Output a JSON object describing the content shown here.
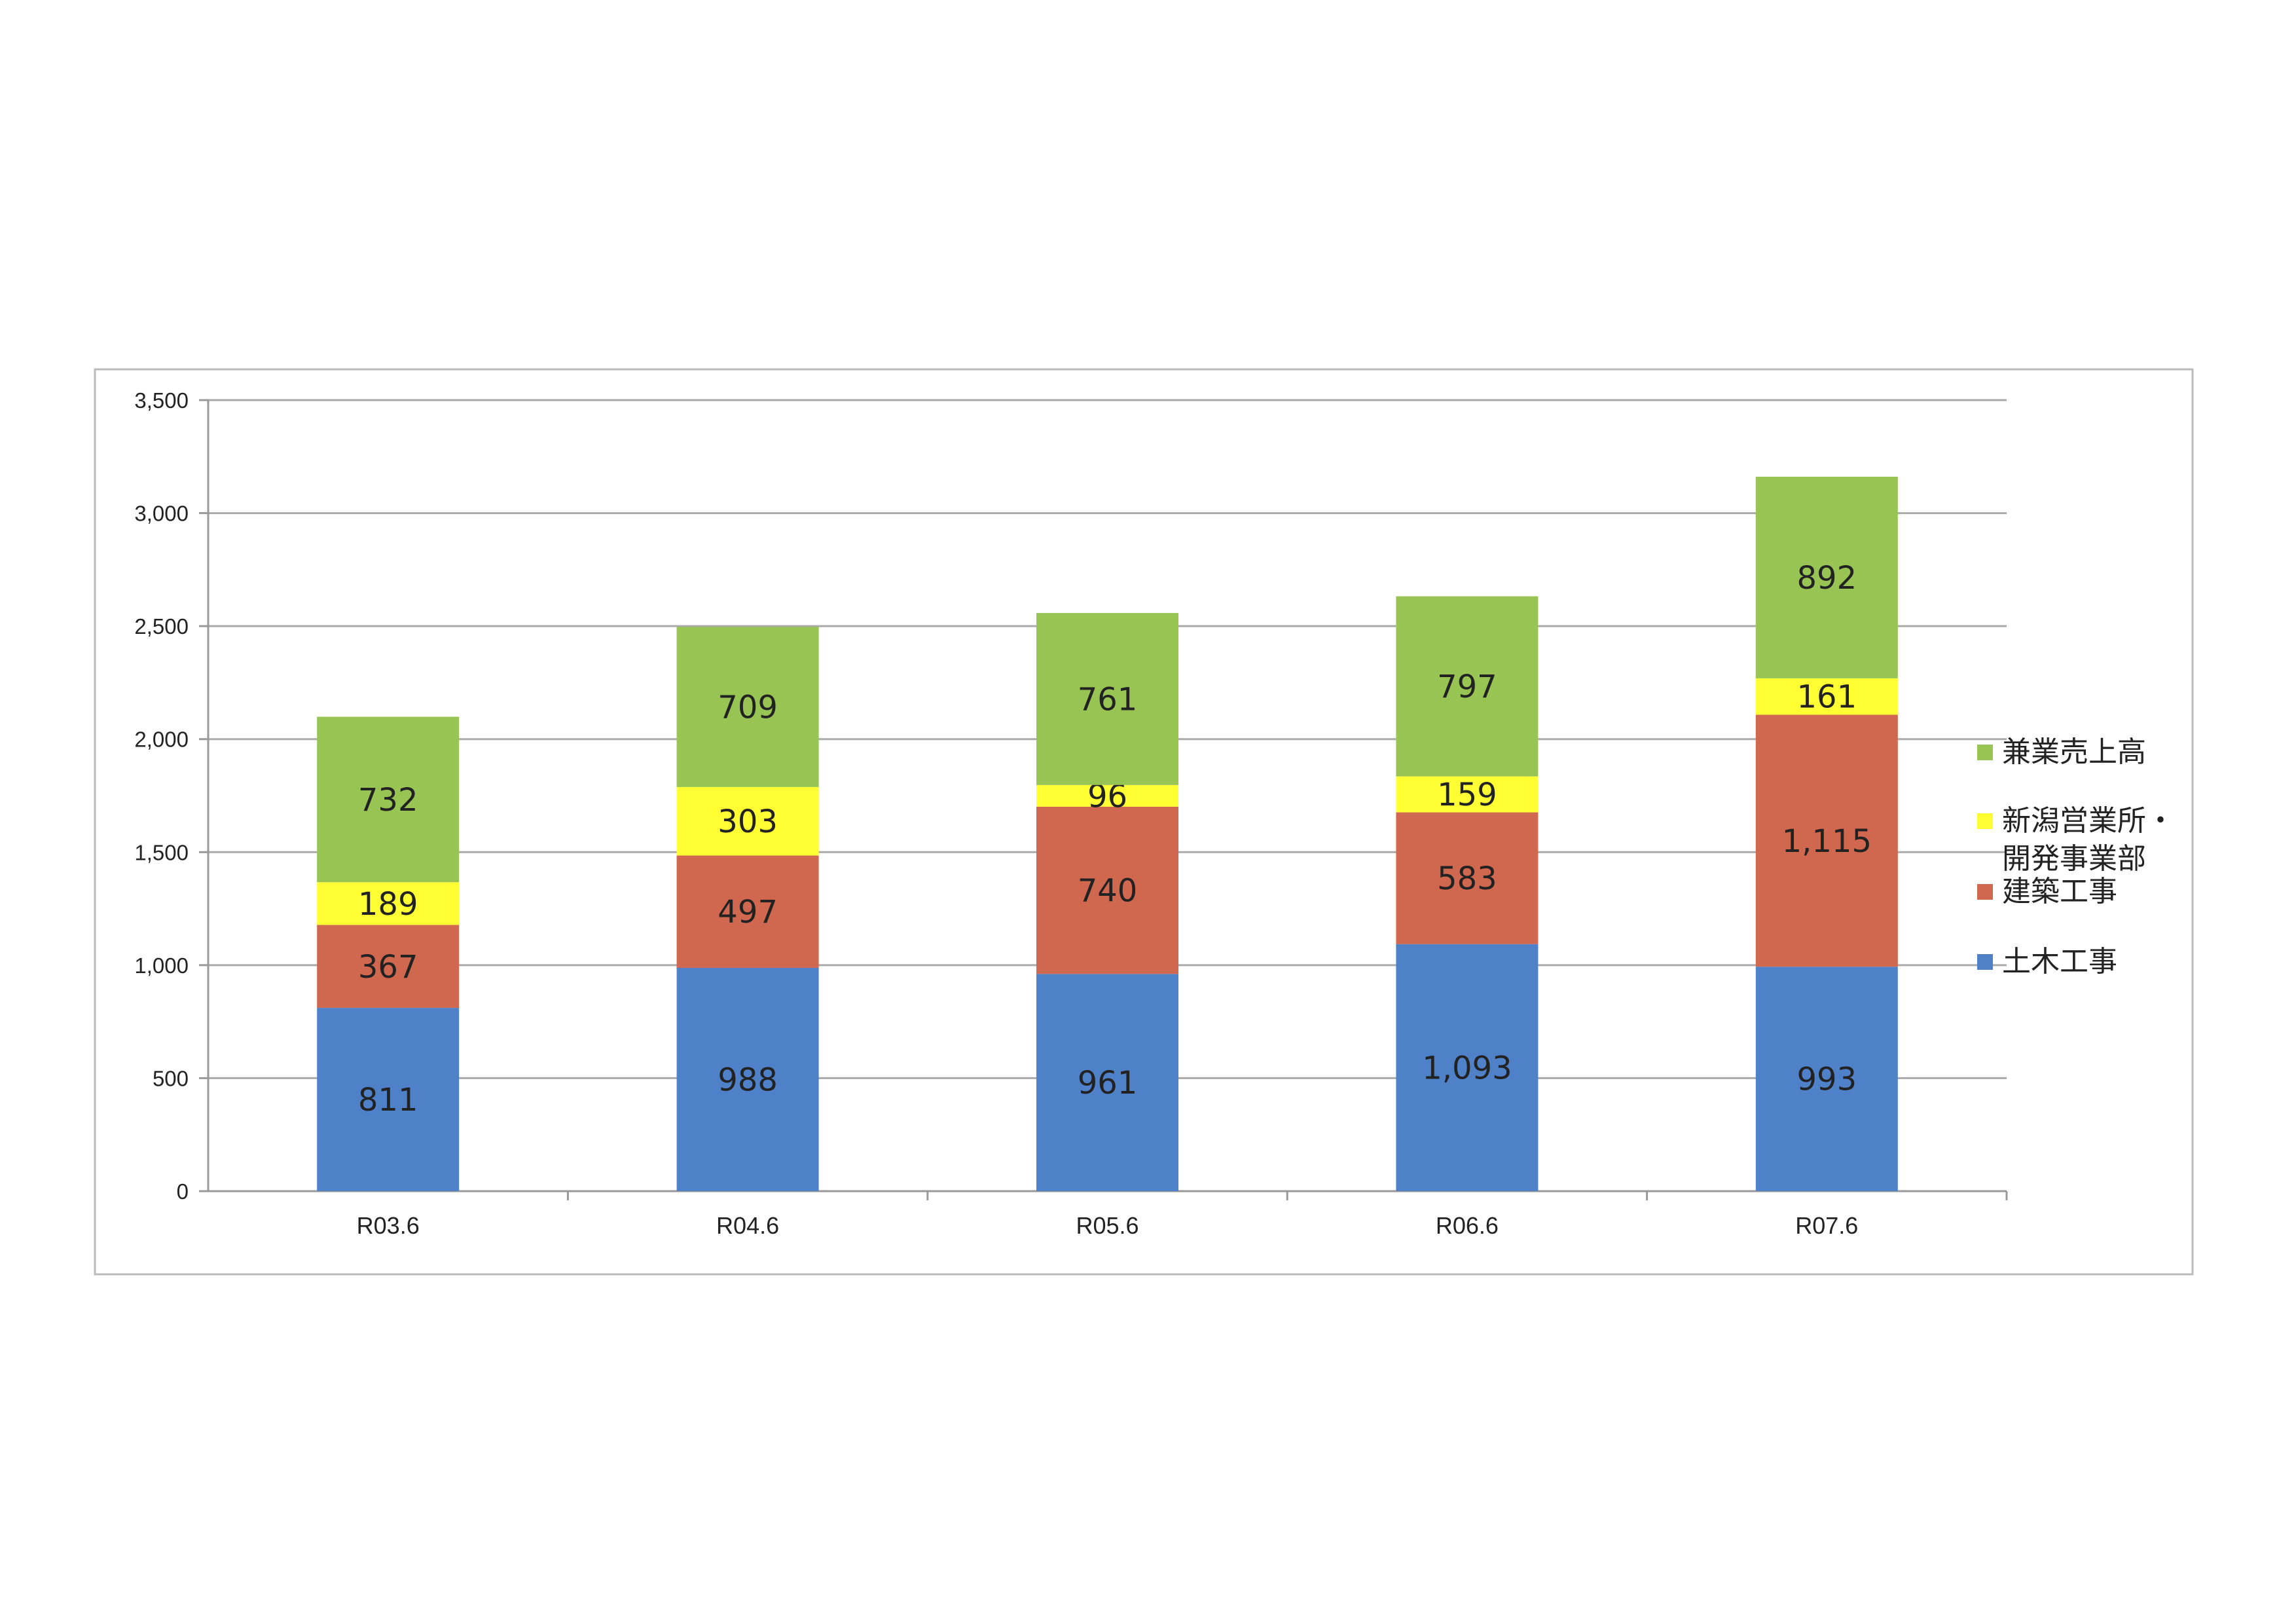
{
  "chart_data": {
    "type": "bar",
    "stacked": true,
    "title": "",
    "xlabel": "",
    "ylabel": "",
    "ylim": [
      0,
      3500
    ],
    "yticks": [
      0,
      500,
      1000,
      1500,
      2000,
      2500,
      3000,
      3500
    ],
    "ytick_labels": [
      "0",
      "500",
      "1,000",
      "1,500",
      "2,000",
      "2,500",
      "3,000",
      "3,500"
    ],
    "grid": true,
    "legend_position": "right",
    "categories": [
      "R03.6",
      "R04.6",
      "R05.6",
      "R06.6",
      "R07.6"
    ],
    "series": [
      {
        "name": "土木工事",
        "color": "#4f81c9",
        "values": [
          811,
          988,
          961,
          1093,
          993
        ],
        "labels": [
          "811",
          "988",
          "961",
          "1,093",
          "993"
        ]
      },
      {
        "name": "建築工事",
        "color": "#d0674f",
        "values": [
          367,
          497,
          740,
          583,
          1115
        ],
        "labels": [
          "367",
          "497",
          "740",
          "583",
          "1,115"
        ]
      },
      {
        "name": "新潟営業所・開発事業部",
        "name_lines": [
          "新潟営業所・",
          "開発事業部"
        ],
        "color": "#ffff33",
        "values": [
          189,
          303,
          96,
          159,
          161
        ],
        "labels": [
          "189",
          "303",
          "96",
          "159",
          "161"
        ]
      },
      {
        "name": "兼業売上高",
        "color": "#98c454",
        "values": [
          732,
          709,
          761,
          797,
          892
        ],
        "labels": [
          "732",
          "709",
          "761",
          "797",
          "892"
        ]
      }
    ]
  }
}
